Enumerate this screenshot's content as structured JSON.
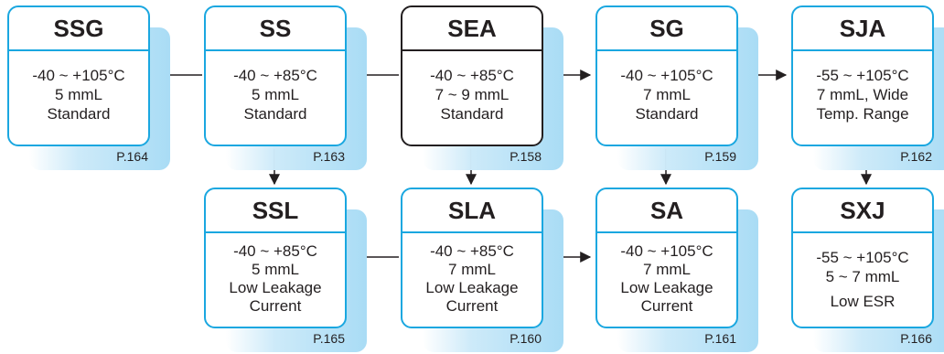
{
  "series": [
    {
      "id": "ssg",
      "name": "SSG",
      "temp": "-40 ~ +105°C",
      "size": "5 mmL",
      "desc": [
        "Standard"
      ],
      "page": "P.164",
      "highlight": false
    },
    {
      "id": "ss",
      "name": "SS",
      "temp": "-40 ~ +85°C",
      "size": "5 mmL",
      "desc": [
        "Standard"
      ],
      "page": "P.163",
      "highlight": false
    },
    {
      "id": "sea",
      "name": "SEA",
      "temp": "-40 ~ +85°C",
      "size": "7 ~ 9 mmL",
      "desc": [
        "Standard"
      ],
      "page": "P.158",
      "highlight": true
    },
    {
      "id": "sg",
      "name": "SG",
      "temp": "-40 ~ +105°C",
      "size": "7 mmL",
      "desc": [
        "Standard"
      ],
      "page": "P.159",
      "highlight": false
    },
    {
      "id": "sja",
      "name": "SJA",
      "temp": "-55 ~ +105°C",
      "size": "7 mmL, Wide",
      "desc": [
        "Temp. Range"
      ],
      "page": "P.162",
      "highlight": false
    },
    {
      "id": "ssl",
      "name": "SSL",
      "temp": "-40 ~ +85°C",
      "size": "5 mmL",
      "desc": [
        "Low Leakage",
        "Current"
      ],
      "page": "P.165",
      "highlight": false
    },
    {
      "id": "sla",
      "name": "SLA",
      "temp": "-40 ~ +85°C",
      "size": "7 mmL",
      "desc": [
        "Low Leakage",
        "Current"
      ],
      "page": "P.160",
      "highlight": false
    },
    {
      "id": "sa",
      "name": "SA",
      "temp": "-40 ~ +105°C",
      "size": "7 mmL",
      "desc": [
        "Low Leakage",
        "Current"
      ],
      "page": "P.161",
      "highlight": false
    },
    {
      "id": "sxj",
      "name": "SXJ",
      "temp": "-55 ~ +105°C",
      "size": "5 ~ 7 mmL",
      "desc": [
        "Low ESR"
      ],
      "page": "P.166",
      "highlight": false
    }
  ],
  "connections": [
    {
      "from": "sea",
      "to": "ss"
    },
    {
      "from": "ss",
      "to": "ssg"
    },
    {
      "from": "sea",
      "to": "sg"
    },
    {
      "from": "sg",
      "to": "sja"
    },
    {
      "from": "ss",
      "to": "ssl"
    },
    {
      "from": "sea",
      "to": "sla"
    },
    {
      "from": "sg",
      "to": "sa"
    },
    {
      "from": "sja",
      "to": "sxj"
    },
    {
      "from": "sla",
      "to": "ssl"
    },
    {
      "from": "sla",
      "to": "sa"
    }
  ]
}
